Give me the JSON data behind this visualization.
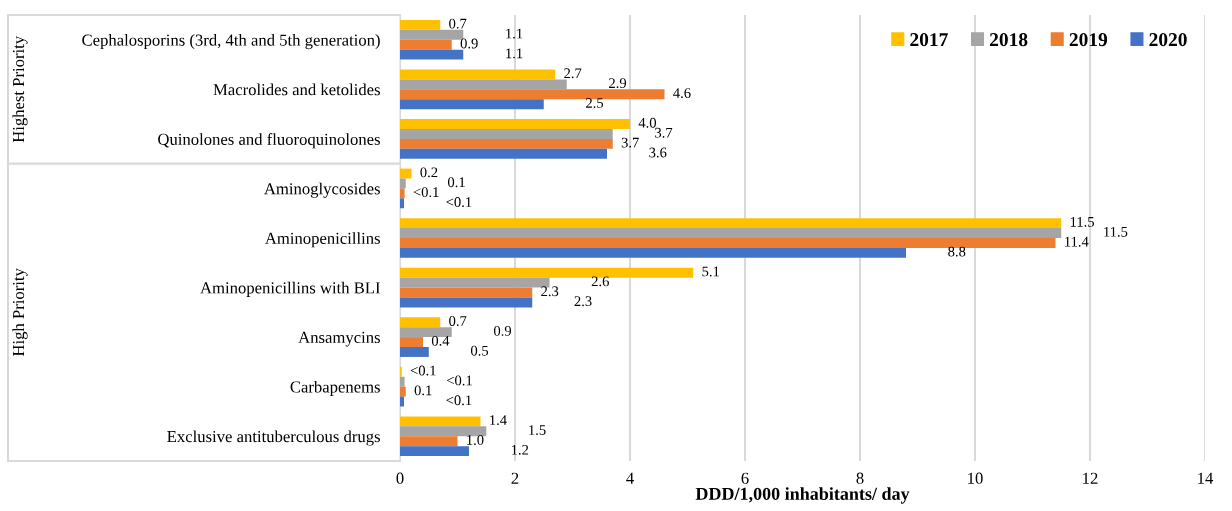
{
  "chart_data": {
    "type": "bar",
    "orientation": "horizontal",
    "categories": [
      "Cephalosporins (3rd, 4th and 5th generation)",
      "Macrolides and ketolides",
      "Quinolones and fluoroquinolones",
      "Aminoglycosides",
      "Aminopenicillins",
      "Aminopenicillins with BLI",
      "Ansamycins",
      "Carbapenems",
      "Exclusive antituberculous drugs"
    ],
    "series": [
      {
        "name": "2017",
        "color": "#ffc000",
        "values": [
          0.7,
          2.7,
          4.0,
          0.2,
          11.5,
          5.1,
          0.7,
          0.03,
          1.4
        ],
        "value_labels": [
          "0.7",
          "2.7",
          "4.0",
          "0.2",
          "11.5",
          "5.1",
          "0.7",
          "<0.1",
          "1.4"
        ]
      },
      {
        "name": "2018",
        "color": "#a5a5a5",
        "values": [
          1.1,
          2.9,
          3.7,
          0.1,
          11.5,
          2.6,
          0.9,
          0.08,
          1.5
        ],
        "value_labels": [
          "1.1",
          "2.9",
          "3.7",
          "0.1",
          "11.5",
          "2.6",
          "0.9",
          "<0.1",
          "1.5"
        ]
      },
      {
        "name": "2019",
        "color": "#ed7d31",
        "values": [
          0.9,
          4.6,
          3.7,
          0.08,
          11.4,
          2.3,
          0.4,
          0.1,
          1.0
        ],
        "value_labels": [
          "0.9",
          "4.6",
          "3.7",
          "<0.1",
          "11.4",
          "2.3",
          "0.4",
          "0.1",
          "1.0"
        ]
      },
      {
        "name": "2020",
        "color": "#4472c4",
        "values": [
          1.1,
          2.5,
          3.6,
          0.07,
          8.8,
          2.3,
          0.5,
          0.07,
          1.2
        ],
        "value_labels": [
          "1.1",
          "2.5",
          "3.6",
          "<0.1",
          "8.8",
          "2.3",
          "0.5",
          "<0.1",
          "1.2"
        ]
      }
    ],
    "xlabel": "DDD/1,000 inhabitants/ day",
    "xlim": [
      0,
      14
    ],
    "xticks": [
      0,
      2,
      4,
      6,
      8,
      10,
      12,
      14
    ],
    "grid": "x",
    "legend": "top right",
    "annotations": [
      "Highest Priority",
      "High Priority"
    ]
  }
}
